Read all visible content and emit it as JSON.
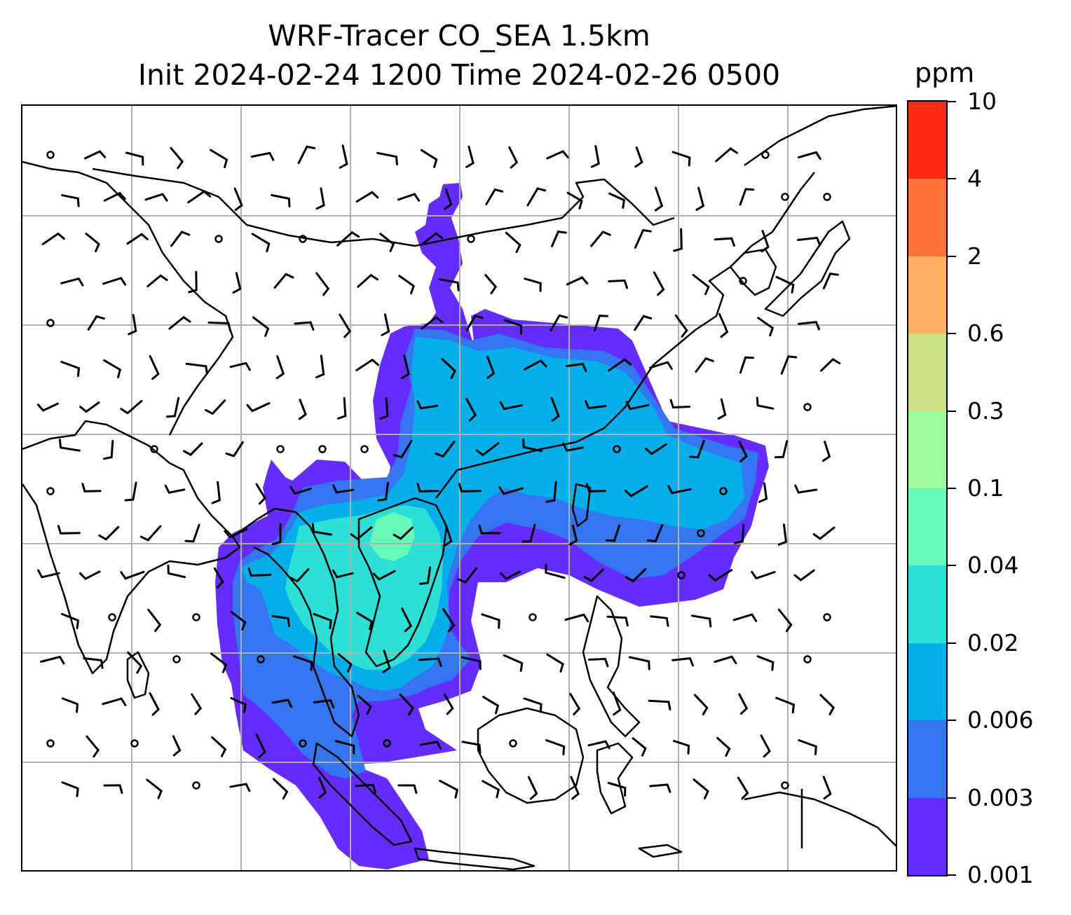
{
  "figure": {
    "title_line1": "WRF-Tracer CO_SEA 1.5km",
    "title_line2": "Init 2024-02-24 1200 Time 2024-02-26 0500"
  },
  "colorbar": {
    "unit": "ppm",
    "levels": [
      "0.001",
      "0.003",
      "0.006",
      "0.02",
      "0.04",
      "0.1",
      "0.3",
      "0.6",
      "2",
      "4",
      "10"
    ],
    "colors": [
      "#642cff",
      "#3475f2",
      "#05b0ea",
      "#2ddfd4",
      "#66fbb9",
      "#9cfb9a",
      "#cde184",
      "#ffb060",
      "#ff7239",
      "#ff2a14"
    ]
  },
  "map": {
    "projection": "lat-lon",
    "gridlines": true,
    "gridline_color": "#b0b0b0",
    "coastline_color": "#000000",
    "wind_barbs": true,
    "plume_colors": {
      "faint": "#642cff",
      "low": "#3475f2",
      "medium": "#05b0ea",
      "high": "#2ddfd4",
      "peak": "#66fbb9"
    }
  }
}
